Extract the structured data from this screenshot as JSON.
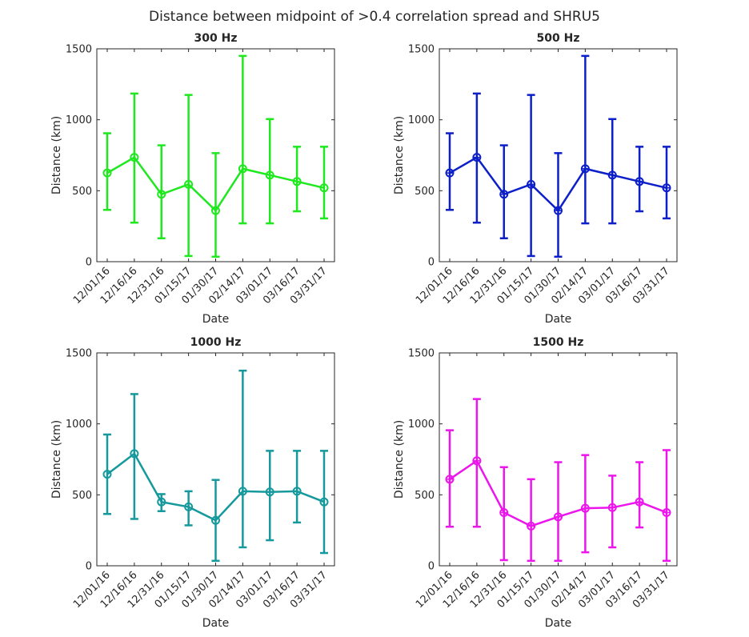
{
  "figure": {
    "title": "Distance between midpoint of >0.4 correlation spread and SHRU5"
  },
  "chart_data": [
    {
      "type": "line",
      "title": "300 Hz",
      "xlabel": "Date",
      "ylabel": "Distance (km)",
      "x": [
        "12/01/16",
        "12/16/16",
        "12/31/16",
        "01/15/17",
        "01/30/17",
        "02/14/17",
        "03/01/17",
        "03/16/17",
        "03/31/17"
      ],
      "y": [
        625,
        735,
        475,
        545,
        360,
        655,
        610,
        565,
        520
      ],
      "error_low": [
        365,
        275,
        165,
        40,
        35,
        270,
        270,
        355,
        305
      ],
      "error_high": [
        905,
        1185,
        820,
        1175,
        765,
        1450,
        1005,
        810,
        810
      ],
      "ylim": [
        0,
        1500
      ],
      "yticks": [
        0,
        500,
        1000,
        1500
      ],
      "color": "#1ee81e",
      "marker": "circle"
    },
    {
      "type": "line",
      "title": "500 Hz",
      "xlabel": "Date",
      "ylabel": "Distance (km)",
      "x": [
        "12/01/16",
        "12/16/16",
        "12/31/16",
        "01/15/17",
        "01/30/17",
        "02/14/17",
        "03/01/17",
        "03/16/17",
        "03/31/17"
      ],
      "y": [
        625,
        735,
        475,
        545,
        360,
        655,
        610,
        565,
        520
      ],
      "error_low": [
        365,
        275,
        165,
        40,
        35,
        270,
        270,
        355,
        305
      ],
      "error_high": [
        905,
        1185,
        820,
        1175,
        765,
        1450,
        1005,
        810,
        810
      ],
      "ylim": [
        0,
        1500
      ],
      "yticks": [
        0,
        500,
        1000,
        1500
      ],
      "color": "#0d1fc9",
      "marker": "circle-cross"
    },
    {
      "type": "line",
      "title": "1000 Hz",
      "xlabel": "Date",
      "ylabel": "Distance (km)",
      "x": [
        "12/01/16",
        "12/16/16",
        "12/31/16",
        "01/15/17",
        "01/30/17",
        "02/14/17",
        "03/01/17",
        "03/16/17",
        "03/31/17"
      ],
      "y": [
        645,
        790,
        450,
        415,
        320,
        525,
        520,
        525,
        450
      ],
      "error_low": [
        365,
        330,
        385,
        285,
        35,
        130,
        180,
        305,
        90
      ],
      "error_high": [
        925,
        1210,
        505,
        525,
        605,
        1375,
        810,
        810,
        810
      ],
      "ylim": [
        0,
        1500
      ],
      "yticks": [
        0,
        500,
        1000,
        1500
      ],
      "color": "#16999c",
      "marker": "circle"
    },
    {
      "type": "line",
      "title": "1500 Hz",
      "xlabel": "Date",
      "ylabel": "Distance (km)",
      "x": [
        "12/01/16",
        "12/16/16",
        "12/31/16",
        "01/15/17",
        "01/30/17",
        "02/14/17",
        "03/01/17",
        "03/16/17",
        "03/31/17"
      ],
      "y": [
        610,
        740,
        375,
        280,
        345,
        405,
        410,
        450,
        375
      ],
      "error_low": [
        275,
        275,
        40,
        35,
        35,
        95,
        130,
        270,
        35
      ],
      "error_high": [
        955,
        1175,
        695,
        610,
        730,
        780,
        635,
        730,
        815
      ],
      "ylim": [
        0,
        1500
      ],
      "yticks": [
        0,
        500,
        1000,
        1500
      ],
      "color": "#ec16ec",
      "marker": "circle-cross"
    }
  ]
}
